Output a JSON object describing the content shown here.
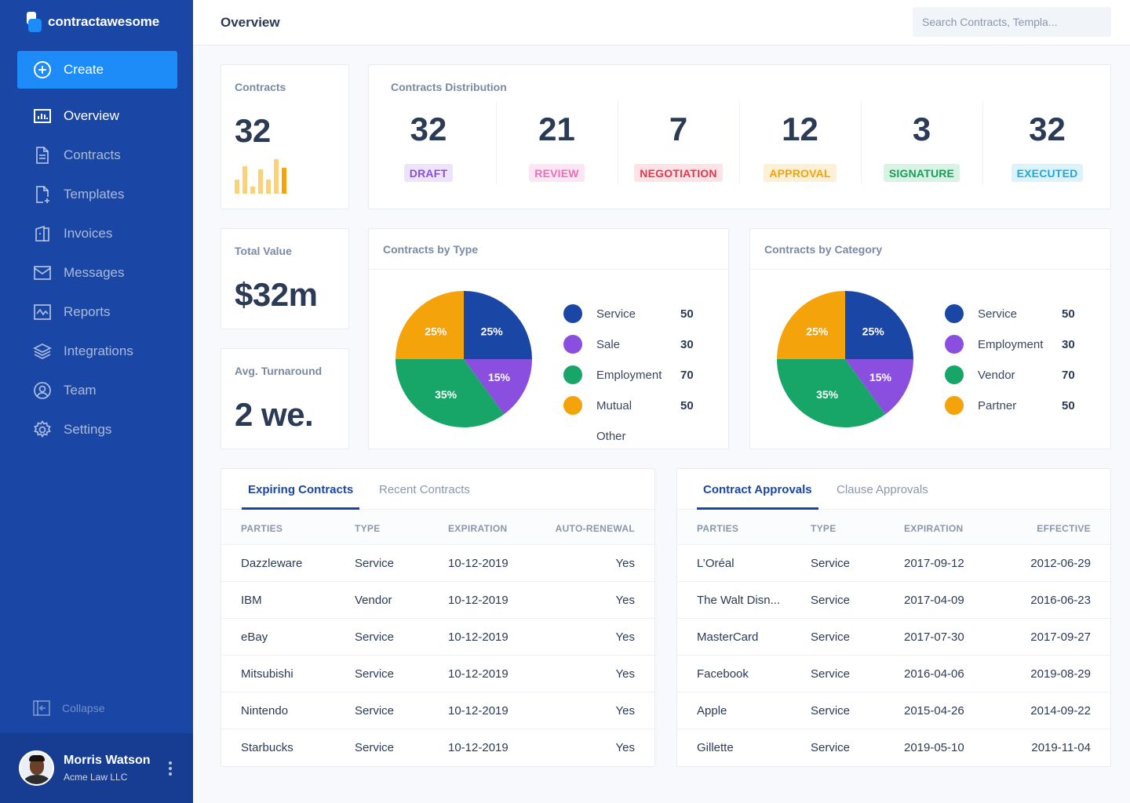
{
  "brand": {
    "name": "contractawesome"
  },
  "sidebar": {
    "create_label": "Create",
    "items": [
      {
        "label": "Overview",
        "icon": "bar-chart-icon",
        "active": true
      },
      {
        "label": "Contracts",
        "icon": "document-icon"
      },
      {
        "label": "Templates",
        "icon": "template-icon"
      },
      {
        "label": "Invoices",
        "icon": "invoice-icon"
      },
      {
        "label": "Messages",
        "icon": "mail-icon"
      },
      {
        "label": "Reports",
        "icon": "report-icon"
      },
      {
        "label": "Integrations",
        "icon": "layers-icon"
      },
      {
        "label": "Team",
        "icon": "user-circle-icon"
      },
      {
        "label": "Settings",
        "icon": "gear-icon"
      }
    ],
    "collapse_label": "Collapse"
  },
  "user": {
    "name": "Morris Watson",
    "org": "Acme Law LLC"
  },
  "header": {
    "title": "Overview",
    "search_placeholder": "Search Contracts, Templa..."
  },
  "stats": {
    "contracts": {
      "label": "Contracts",
      "value": "32",
      "sparkbars": [
        0.4,
        0.8,
        0.2,
        0.7,
        0.4,
        1.0,
        0.75
      ]
    },
    "total_value": {
      "label": "Total Value",
      "value": "$32m"
    },
    "turnaround": {
      "label": "Avg. Turnaround",
      "value": "2 we."
    }
  },
  "distribution": {
    "label": "Contracts Distribution",
    "items": [
      {
        "value": "32",
        "status": "DRAFT",
        "color": "#8b4fd6",
        "bg": "#ede4fb"
      },
      {
        "value": "21",
        "status": "REVIEW",
        "color": "#ec6fb5",
        "bg": "#fde6f3"
      },
      {
        "value": "7",
        "status": "NEGOTIATION",
        "color": "#e0384f",
        "bg": "#fde3e6"
      },
      {
        "value": "12",
        "status": "APPROVAL",
        "color": "#f0a30a",
        "bg": "#fdf0d5"
      },
      {
        "value": "3",
        "status": "SIGNATURE",
        "color": "#15a05b",
        "bg": "#d8f3e4"
      },
      {
        "value": "32",
        "status": "EXECUTED",
        "color": "#1fa9d8",
        "bg": "#dcf3fb"
      }
    ]
  },
  "chart_data": [
    {
      "type": "pie",
      "title": "Contracts by Type",
      "slices": [
        {
          "label": "25%",
          "pct": 25,
          "color": "#1a47a5"
        },
        {
          "label": "15%",
          "pct": 15,
          "color": "#8b4fe0"
        },
        {
          "label": "35%",
          "pct": 35,
          "color": "#17a667"
        },
        {
          "label": "25%",
          "pct": 25,
          "color": "#f5a30a"
        }
      ],
      "legend": [
        {
          "name": "Service",
          "value": "50",
          "color": "#1a47a5"
        },
        {
          "name": "Sale",
          "value": "30",
          "color": "#8b4fe0"
        },
        {
          "name": "Employment",
          "value": "70",
          "color": "#17a667"
        },
        {
          "name": "Mutual",
          "value": "50",
          "color": "#f5a30a"
        },
        {
          "name": "Other",
          "value": "",
          "color": ""
        }
      ]
    },
    {
      "type": "pie",
      "title": "Contracts by Category",
      "slices": [
        {
          "label": "25%",
          "pct": 25,
          "color": "#1a47a5"
        },
        {
          "label": "15%",
          "pct": 15,
          "color": "#8b4fe0"
        },
        {
          "label": "35%",
          "pct": 35,
          "color": "#17a667"
        },
        {
          "label": "25%",
          "pct": 25,
          "color": "#f5a30a"
        }
      ],
      "legend": [
        {
          "name": "Service",
          "value": "50",
          "color": "#1a47a5"
        },
        {
          "name": "Employment",
          "value": "30",
          "color": "#8b4fe0"
        },
        {
          "name": "Vendor",
          "value": "70",
          "color": "#17a667"
        },
        {
          "name": "Partner",
          "value": "50",
          "color": "#f5a30a"
        }
      ]
    }
  ],
  "expiring": {
    "tabs": [
      "Expiring Contracts",
      "Recent Contracts"
    ],
    "columns": [
      "PARTIES",
      "TYPE",
      "EXPIRATION",
      "AUTO-RENEWAL"
    ],
    "rows": [
      [
        "Dazzleware",
        "Service",
        "10-12-2019",
        "Yes"
      ],
      [
        "IBM",
        "Vendor",
        "10-12-2019",
        "Yes"
      ],
      [
        "eBay",
        "Service",
        "10-12-2019",
        "Yes"
      ],
      [
        "Mitsubishi",
        "Service",
        "10-12-2019",
        "Yes"
      ],
      [
        "Nintendo",
        "Service",
        "10-12-2019",
        "Yes"
      ],
      [
        "Starbucks",
        "Service",
        "10-12-2019",
        "Yes"
      ]
    ]
  },
  "approvals": {
    "tabs": [
      "Contract Approvals",
      "Clause Approvals"
    ],
    "columns": [
      "PARTIES",
      "TYPE",
      "EXPIRATION",
      "EFFECTIVE"
    ],
    "rows": [
      [
        "L’Oréal",
        "Service",
        "2017-09-12",
        "2012-06-29"
      ],
      [
        "The Walt Disn...",
        "Service",
        "2017-04-09",
        "2016-06-23"
      ],
      [
        "MasterCard",
        "Service",
        "2017-07-30",
        "2017-09-27"
      ],
      [
        "Facebook",
        "Service",
        "2016-04-06",
        "2019-08-29"
      ],
      [
        "Apple",
        "Service",
        "2015-04-26",
        "2014-09-22"
      ],
      [
        "Gillette",
        "Service",
        "2019-05-10",
        "2019-11-04"
      ]
    ]
  }
}
